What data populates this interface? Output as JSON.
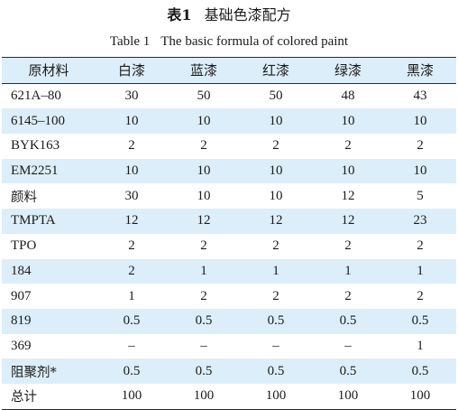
{
  "caption_cn": {
    "label": "表1",
    "text": "基础色漆配方"
  },
  "caption_en": {
    "label": "Table 1",
    "text": "The basic formula of colored paint"
  },
  "table": {
    "headers": [
      "原材料",
      "白漆",
      "蓝漆",
      "红漆",
      "绿漆",
      "黑漆"
    ],
    "rows": [
      {
        "name": "621A–80",
        "values": [
          "30",
          "50",
          "50",
          "48",
          "43"
        ]
      },
      {
        "name": "6145–100",
        "values": [
          "10",
          "10",
          "10",
          "10",
          "10"
        ]
      },
      {
        "name": "BYK163",
        "values": [
          "2",
          "2",
          "2",
          "2",
          "2"
        ]
      },
      {
        "name": "EM2251",
        "values": [
          "10",
          "10",
          "10",
          "10",
          "10"
        ]
      },
      {
        "name": "颜料",
        "values": [
          "30",
          "10",
          "10",
          "12",
          "5"
        ]
      },
      {
        "name": "TMPTA",
        "values": [
          "12",
          "12",
          "12",
          "12",
          "23"
        ]
      },
      {
        "name": "TPO",
        "values": [
          "2",
          "2",
          "2",
          "2",
          "2"
        ]
      },
      {
        "name": "184",
        "values": [
          "2",
          "1",
          "1",
          "1",
          "1"
        ]
      },
      {
        "name": "907",
        "values": [
          "1",
          "2",
          "2",
          "2",
          "2"
        ]
      },
      {
        "name": "819",
        "values": [
          "0.5",
          "0.5",
          "0.5",
          "0.5",
          "0.5"
        ]
      },
      {
        "name": "369",
        "values": [
          "–",
          "–",
          "–",
          "–",
          "1"
        ]
      },
      {
        "name": "阻聚剂*",
        "values": [
          "0.5",
          "0.5",
          "0.5",
          "0.5",
          "0.5"
        ]
      },
      {
        "name": "总计",
        "values": [
          "100",
          "100",
          "100",
          "100",
          "100"
        ]
      }
    ]
  },
  "colors": {
    "row_shade": "#dceef9",
    "rule": "#2a2a2a",
    "text": "#1a1a1a"
  }
}
